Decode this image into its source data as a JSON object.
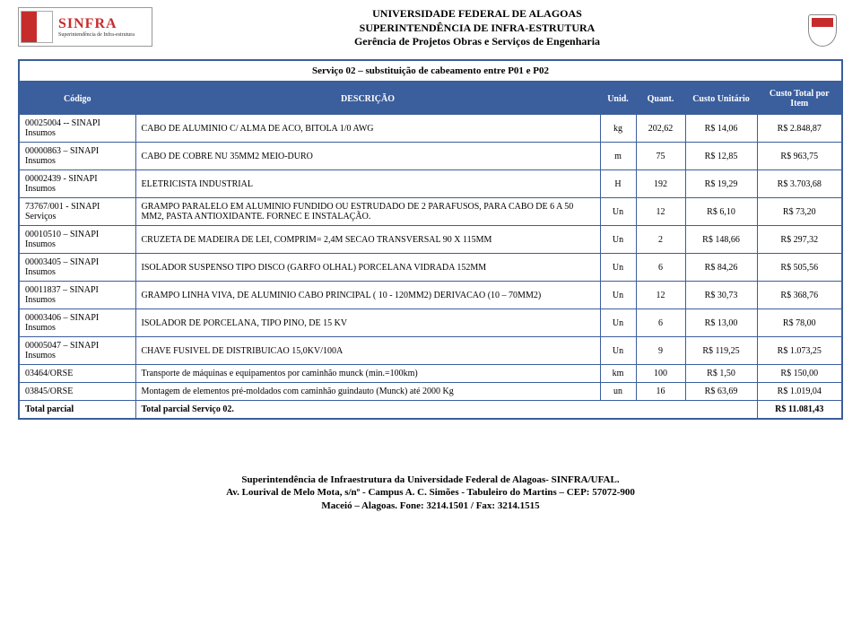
{
  "header": {
    "line1": "UNIVERSIDADE FEDERAL DE ALAGOAS",
    "line2": "SUPERINTENDÊNCIA DE INFRA-ESTRUTURA",
    "line3": "Gerência de Projetos Obras e Serviços de Engenharia",
    "logo_left_big": "SINFRA",
    "logo_left_small": "Superintendência de Infra-estrutura"
  },
  "service_title": "Serviço 02 – substituição de cabeamento entre P01 e P02",
  "columns": {
    "codigo": "Código",
    "descricao": "DESCRIÇÃO",
    "unid": "Unid.",
    "quant": "Quant.",
    "custo_unit": "Custo Unitário",
    "custo_total": "Custo Total por Item"
  },
  "rows": [
    {
      "code": "00025004 -- SINAPI",
      "codesub": "Insumos",
      "desc": "CABO DE ALUMINIO C/ ALMA DE ACO, BITOLA 1/0 AWG",
      "unid": "kg",
      "quant": "202,62",
      "unit": "R$ 14,06",
      "total": "R$ 2.848,87"
    },
    {
      "code": "00000863 – SINAPI",
      "codesub": "Insumos",
      "desc": "CABO DE COBRE NU 35MM2 MEIO-DURO",
      "unid": "m",
      "quant": "75",
      "unit": "R$ 12,85",
      "total": "R$ 963,75"
    },
    {
      "code": "00002439 - SINAPI Insumos",
      "codesub": "",
      "desc": "ELETRICISTA INDUSTRIAL",
      "unid": "H",
      "quant": "192",
      "unit": "R$ 19,29",
      "total": "R$ 3.703,68"
    },
    {
      "code": "73767/001 - SINAPI",
      "codesub": "Serviços",
      "desc": "GRAMPO PARALELO EM ALUMINIO FUNDIDO OU ESTRUDADO DE 2 PARAFUSOS, PARA CABO DE 6 A 50 MM2, PASTA ANTIOXIDANTE. FORNEC E INSTALAÇÃO.",
      "unid": "Un",
      "quant": "12",
      "unit": "R$ 6,10",
      "total": "R$ 73,20"
    },
    {
      "code": "00010510 – SINAPI",
      "codesub": "Insumos",
      "desc": "CRUZETA DE MADEIRA DE LEI, COMPRIM= 2,4M SECAO TRANSVERSAL 90 X 115MM",
      "unid": "Un",
      "quant": "2",
      "unit": "R$ 148,66",
      "total": "R$ 297,32"
    },
    {
      "code": "00003405 – SINAPI",
      "codesub": "Insumos",
      "desc": "ISOLADOR SUSPENSO TIPO DISCO (GARFO OLHAL) PORCELANA VIDRADA 152MM",
      "unid": "Un",
      "quant": "6",
      "unit": "R$ 84,26",
      "total": "R$ 505,56"
    },
    {
      "code": "00011837 – SINAPI",
      "codesub": "Insumos",
      "desc": "GRAMPO LINHA VIVA, DE ALUMINIO CABO PRINCIPAL ( 10 - 120MM2) DERIVACAO (10 – 70MM2)",
      "unid": "Un",
      "quant": "12",
      "unit": "R$ 30,73",
      "total": "R$ 368,76"
    },
    {
      "code": "00003406 – SINAPI",
      "codesub": "Insumos",
      "desc": "ISOLADOR DE PORCELANA, TIPO PINO, DE 15 KV",
      "unid": "Un",
      "quant": "6",
      "unit": "R$ 13,00",
      "total": "R$ 78,00"
    },
    {
      "code": "00005047 – SINAPI",
      "codesub": "Insumos",
      "desc": "CHAVE FUSIVEL DE DISTRIBUICAO 15,0KV/100A",
      "unid": "Un",
      "quant": "9",
      "unit": "R$ 119,25",
      "total": "R$ 1.073,25"
    },
    {
      "code": "03464/ORSE",
      "codesub": "",
      "desc": "Transporte de máquinas e equipamentos por caminhão munck (min.=100km)",
      "unid": "km",
      "quant": "100",
      "unit": "R$ 1,50",
      "total": "R$ 150,00"
    },
    {
      "code": "03845/ORSE",
      "codesub": "",
      "desc": "Montagem de elementos pré-moldados com caminhão guindauto (Munck) até 2000 Kg",
      "unid": "un",
      "quant": "16",
      "unit": "R$ 63,69",
      "total": "R$ 1.019,04"
    }
  ],
  "total_row": {
    "label": "Total parcial",
    "desc": "Total parcial Serviço 02.",
    "total": "R$ 11.081,43"
  },
  "footer": {
    "line1": "Superintendência de Infraestrutura da Universidade Federal de Alagoas- SINFRA/UFAL.",
    "line2": "Av. Lourival de Melo Mota, s/nº - Campus A. C. Simões - Tabuleiro do Martins – CEP: 57072-900",
    "line3": "Maceió – Alagoas. Fone: 3214.1501 / Fax: 3214.1515"
  },
  "colors": {
    "primary": "#3b5e9c",
    "text": "#000000",
    "bg": "#ffffff"
  }
}
